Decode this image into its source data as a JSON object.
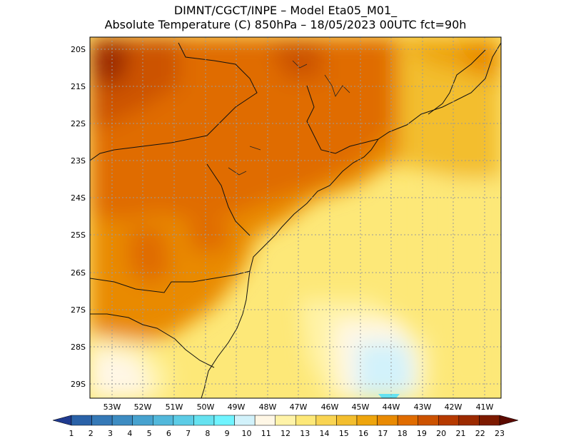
{
  "title_line1": "DIMNT/CGCT/INPE –  Model Eta05_M01_",
  "title_line2": "Absolute Temperature (C) 850hPa –  18/05/2023 00UTC fct=90h",
  "lat_labels": [
    "20S",
    "21S",
    "22S",
    "23S",
    "24S",
    "25S",
    "26S",
    "27S",
    "28S",
    "29S"
  ],
  "lon_labels": [
    "53W",
    "52W",
    "51W",
    "50W",
    "49W",
    "48W",
    "47W",
    "46W",
    "45W",
    "44W",
    "43W",
    "42W",
    "41W"
  ],
  "colorbar": {
    "labels": [
      "1",
      "2",
      "3",
      "4",
      "5",
      "6",
      "7",
      "8",
      "9",
      "10",
      "11",
      "12",
      "13",
      "14",
      "15",
      "16",
      "17",
      "18",
      "19",
      "20",
      "21",
      "22",
      "23"
    ],
    "colors": [
      "#1f3a8f",
      "#2a62a8",
      "#3579b7",
      "#3d8cc2",
      "#47a2cf",
      "#52b8db",
      "#5ccce6",
      "#66e2f0",
      "#70f4ff",
      "#d2f2fb",
      "#fff7e6",
      "#fff3a8",
      "#fde878",
      "#f9d452",
      "#f3be2e",
      "#eea50d",
      "#e98a02",
      "#e06c00",
      "#cc5200",
      "#b63a00",
      "#9c2a00",
      "#7d1a00",
      "#5c0a00"
    ]
  }
}
